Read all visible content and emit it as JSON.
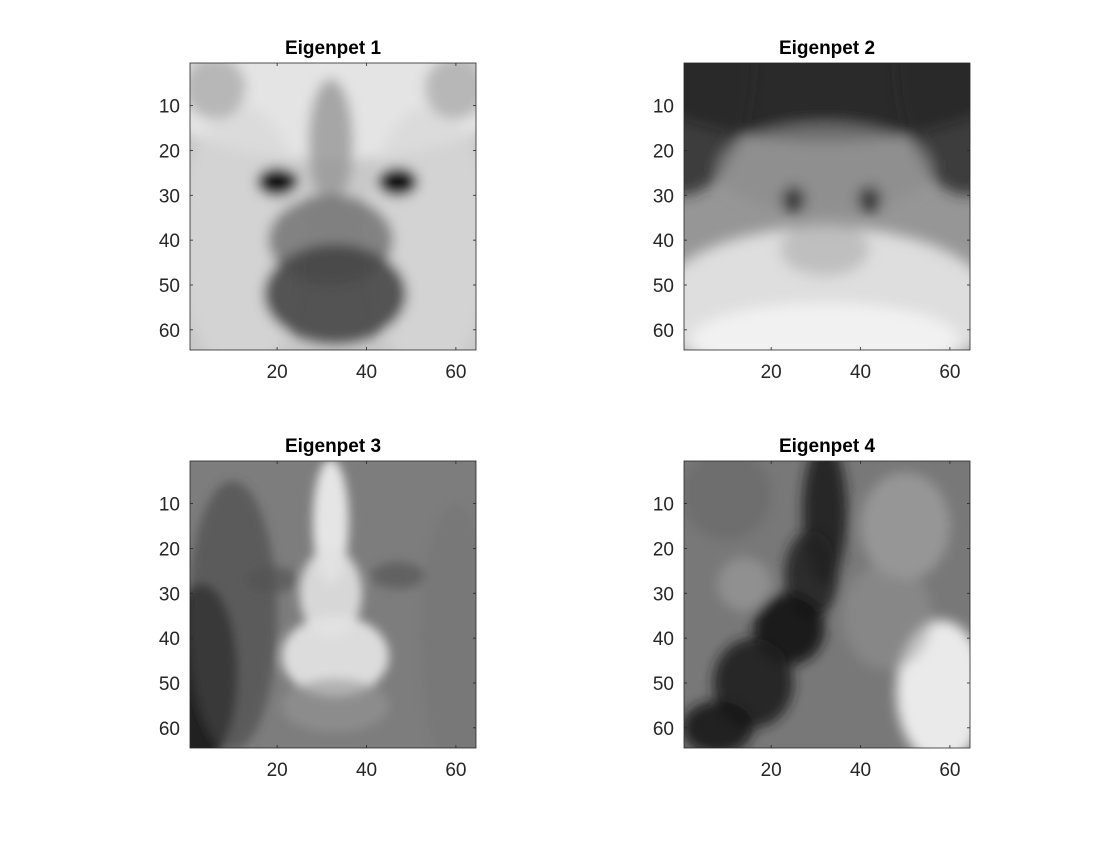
{
  "chart_data": [
    {
      "type": "heatmap",
      "title": "Eigenpet 1",
      "xlim": [
        0.5,
        64.5
      ],
      "ylim": [
        0.5,
        64.5
      ],
      "y_reversed": true,
      "xticks": [
        20,
        40,
        60
      ],
      "yticks": [
        10,
        20,
        30,
        40,
        50,
        60
      ],
      "colormap": "gray",
      "grid": false,
      "pattern": "Bright face background; two dark eye blobs near x=20 and x=47 at y=27; darker vertical band down the center; dark nose/mouth region around x=33, y=50."
    },
    {
      "type": "heatmap",
      "title": "Eigenpet 2",
      "xlim": [
        0.5,
        64.5
      ],
      "ylim": [
        0.5,
        64.5
      ],
      "y_reversed": true,
      "xticks": [
        20,
        40,
        60
      ],
      "yticks": [
        10,
        20,
        30,
        40,
        50,
        60
      ],
      "colormap": "gray",
      "grid": false,
      "pattern": "Dark top edge and corners; medium gray middle with small dark spots near x=25 and x=42 at y=32; bright lower half."
    },
    {
      "type": "heatmap",
      "title": "Eigenpet 3",
      "xlim": [
        0.5,
        64.5
      ],
      "ylim": [
        0.5,
        64.5
      ],
      "y_reversed": true,
      "xticks": [
        20,
        40,
        60
      ],
      "yticks": [
        10,
        20,
        30,
        40,
        50,
        60
      ],
      "colormap": "gray",
      "grid": false,
      "pattern": "Medium gray background darker at left; bright vertical nose stripe in the center widening into a bright region around y=35-50; faint dark eye spots at y=26."
    },
    {
      "type": "heatmap",
      "title": "Eigenpet 4",
      "xlim": [
        0.5,
        64.5
      ],
      "ylim": [
        0.5,
        64.5
      ],
      "y_reversed": true,
      "xticks": [
        20,
        40,
        60
      ],
      "yticks": [
        10,
        20,
        30,
        40,
        50,
        60
      ],
      "colormap": "gray",
      "grid": false,
      "pattern": "Gray field with a dark diagonal band running from top center down to the lower left; bright area at bottom right; faint lighter blob near x=14, y=28."
    }
  ]
}
